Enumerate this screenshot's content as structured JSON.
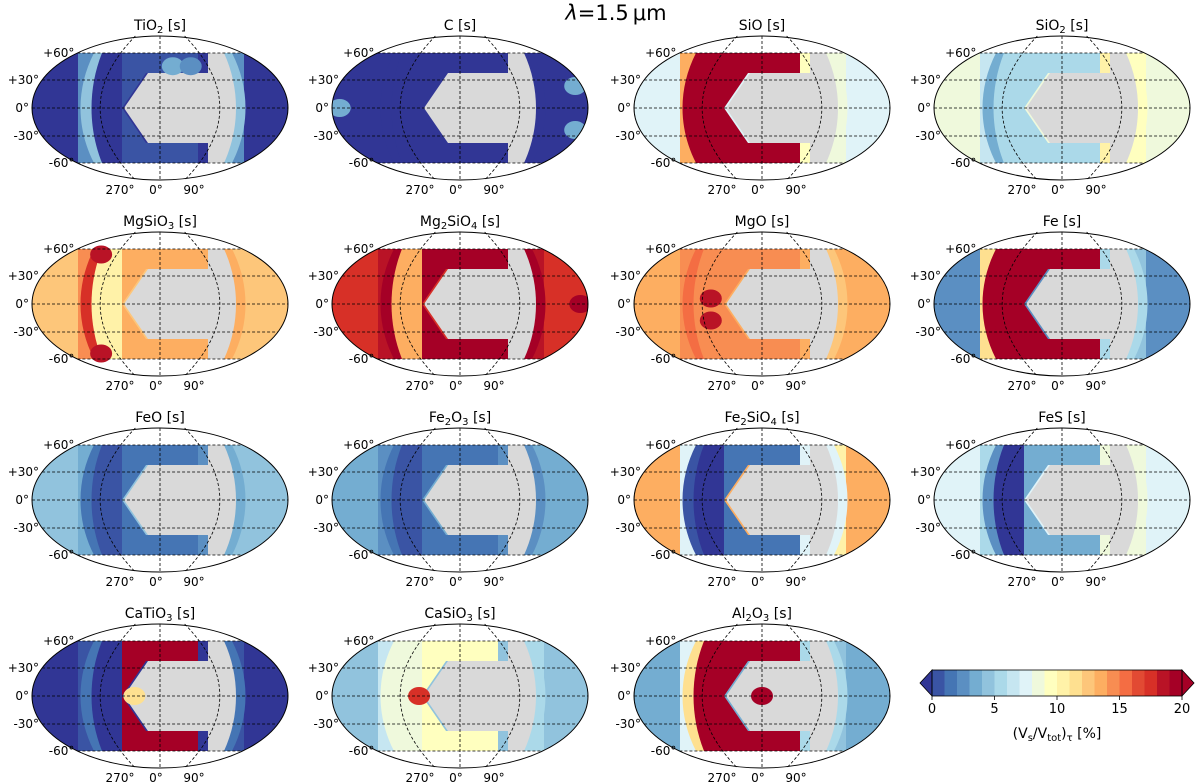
{
  "figure": {
    "title_symbol": "λ",
    "title_rest": "=1.5",
    "title_unit": "μm"
  },
  "axes": {
    "lat_ticks": [
      "+60°",
      "+30°",
      "0°",
      "-30°",
      "-60°"
    ],
    "lon_ticks": [
      "270°",
      "0°",
      "90°"
    ]
  },
  "chart_data": {
    "type": "heatmap",
    "projection": "Robinson-like (global map)",
    "quantity": "volume fraction of cloud species, optical-depth weighted",
    "colorbar": {
      "label_main": "(V",
      "label_sub1": "s",
      "label_mid": "/V",
      "label_sub2": "tot",
      "label_close": ")",
      "label_sub3": "τ",
      "label_unit": " [%]",
      "ticks": [
        "0",
        "5",
        "10",
        "15",
        "20"
      ],
      "range": [
        0,
        20
      ],
      "extend": "both",
      "cmap": "RdYlBu_r",
      "levels": 20
    },
    "panels": [
      {
        "species": [
          {
            "t": "TiO"
          },
          {
            "t": "2",
            "sub": true
          },
          {
            "t": " [s]"
          }
        ],
        "bg": 0,
        "peak": 1,
        "terminator": 5,
        "terminator_west": 5,
        "column_west": 0,
        "column_east": 0,
        "hot_spots": [
          [
            0.55,
            0.12,
            4
          ],
          [
            0.62,
            0.12,
            3
          ]
        ]
      },
      {
        "species": [
          {
            "t": "C [s]"
          }
        ],
        "bg": 0,
        "peak": 0,
        "terminator": 0,
        "terminator_west": 0,
        "column_west": 0,
        "column_east": 0,
        "hot_spots": [
          [
            0.03,
            0.5,
            4
          ],
          [
            0.95,
            0.3,
            4
          ],
          [
            0.95,
            0.7,
            4
          ]
        ]
      },
      {
        "species": [
          {
            "t": "SiO [s]"
          }
        ],
        "bg": 8,
        "peak": 20,
        "terminator": 9,
        "terminator_west": 20,
        "column_west": 20,
        "column_east": 10,
        "hot_spots": [
          [
            0.53,
            0.08,
            20
          ],
          [
            0.53,
            0.92,
            20
          ]
        ]
      },
      {
        "species": [
          {
            "t": "SiO"
          },
          {
            "t": "2",
            "sub": true
          },
          {
            "t": " [s]"
          }
        ],
        "bg": 9,
        "peak": 6,
        "terminator": 10,
        "terminator_west": 4,
        "column_west": 6,
        "column_east": 11,
        "hot_spots": []
      },
      {
        "species": [
          {
            "t": "MgSiO"
          },
          {
            "t": "3",
            "sub": true
          },
          {
            "t": " [s]"
          }
        ],
        "bg": 12.5,
        "peak": 14,
        "terminator": 14,
        "terminator_west": 18,
        "column_west": 11,
        "column_east": 14,
        "hot_spots": [
          [
            0.27,
            0.05,
            19
          ],
          [
            0.27,
            0.95,
            19
          ]
        ]
      },
      {
        "species": [
          {
            "t": "Mg"
          },
          {
            "t": "2",
            "sub": true
          },
          {
            "t": "SiO"
          },
          {
            "t": "4",
            "sub": true
          },
          {
            "t": " [s]"
          }
        ],
        "bg": 18,
        "peak": 20,
        "terminator": 20,
        "terminator_west": 20,
        "column_west": 14,
        "column_east": 20,
        "hot_spots": [
          [
            0.97,
            0.5,
            20
          ]
        ]
      },
      {
        "species": [
          {
            "t": "MgO [s]"
          }
        ],
        "bg": 14,
        "peak": 15,
        "terminator": 13,
        "terminator_west": 16,
        "column_west": 15,
        "column_east": 14,
        "hot_spots": [
          [
            0.3,
            0.45,
            19
          ],
          [
            0.3,
            0.65,
            19
          ]
        ]
      },
      {
        "species": [
          {
            "t": "Fe [s]"
          }
        ],
        "bg": 3,
        "peak": 20,
        "terminator": 6,
        "terminator_west": 20,
        "column_west": 20,
        "column_east": 6,
        "hot_spots": []
      },
      {
        "species": [
          {
            "t": "FeO [s]"
          }
        ],
        "bg": 5,
        "peak": 2,
        "terminator": 4,
        "terminator_west": 2,
        "column_west": 1,
        "column_east": 3,
        "hot_spots": []
      },
      {
        "species": [
          {
            "t": "Fe"
          },
          {
            "t": "2",
            "sub": true
          },
          {
            "t": "O"
          },
          {
            "t": "3",
            "sub": true
          },
          {
            "t": " [s]"
          }
        ],
        "bg": 4,
        "peak": 2,
        "terminator": 3,
        "terminator_west": 2,
        "column_west": 1,
        "column_east": 3,
        "hot_spots": []
      },
      {
        "species": [
          {
            "t": "Fe"
          },
          {
            "t": "2",
            "sub": true
          },
          {
            "t": "SiO"
          },
          {
            "t": "4",
            "sub": true
          },
          {
            "t": " [s]"
          }
        ],
        "bg": 14,
        "peak": 2,
        "terminator": 8,
        "terminator_west": 1,
        "column_west": 0,
        "column_east": 8,
        "hot_spots": []
      },
      {
        "species": [
          {
            "t": "FeS [s]"
          }
        ],
        "bg": 8,
        "peak": 4,
        "terminator": 9,
        "terminator_west": 3,
        "column_west": 0,
        "column_east": 9,
        "hot_spots": []
      },
      {
        "species": [
          {
            "t": "CaTiO"
          },
          {
            "t": "3",
            "sub": true
          },
          {
            "t": " [s]"
          }
        ],
        "bg": 0,
        "peak": 20,
        "terminator": 2,
        "terminator_west": 2,
        "column_west": 0,
        "column_east": 0,
        "hot_spots": [
          [
            0.58,
            0.1,
            20
          ],
          [
            0.58,
            0.9,
            20
          ],
          [
            0.4,
            0.5,
            12
          ]
        ]
      },
      {
        "species": [
          {
            "t": "CaSiO"
          },
          {
            "t": "3",
            "sub": true
          },
          {
            "t": " [s]"
          }
        ],
        "bg": 5,
        "peak": 10,
        "terminator": 6,
        "terminator_west": 9,
        "column_west": 9,
        "column_east": 5,
        "hot_spots": [
          [
            0.34,
            0.5,
            18
          ]
        ]
      },
      {
        "species": [
          {
            "t": "Al"
          },
          {
            "t": "2",
            "sub": true
          },
          {
            "t": "O"
          },
          {
            "t": "3",
            "sub": true
          },
          {
            "t": " [s]"
          }
        ],
        "bg": 4,
        "peak": 20,
        "terminator": 6,
        "terminator_west": 12,
        "column_west": 20,
        "column_east": 6,
        "hot_spots": [
          [
            0.5,
            0.5,
            20
          ]
        ]
      }
    ]
  }
}
